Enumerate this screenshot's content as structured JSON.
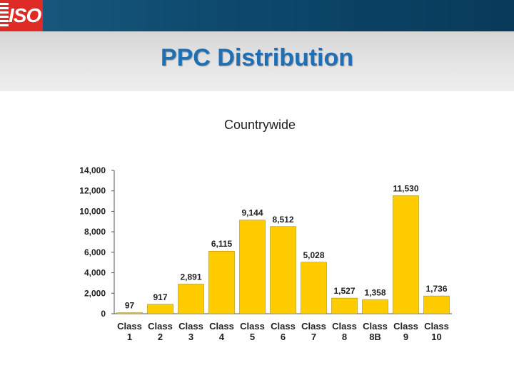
{
  "header": {
    "logo_text": "ISO",
    "brand_color": "#e02a26",
    "bar_color": "#0e4a6e"
  },
  "slide": {
    "title": "PPC Distribution",
    "title_color": "#1f6fb5"
  },
  "chart_data": {
    "type": "bar",
    "title": "Countrywide",
    "xlabel": "",
    "ylabel": "",
    "categories": [
      [
        "Class",
        "1"
      ],
      [
        "Class",
        "2"
      ],
      [
        "Class",
        "3"
      ],
      [
        "Class",
        "4"
      ],
      [
        "Class",
        "5"
      ],
      [
        "Class",
        "6"
      ],
      [
        "Class",
        "7"
      ],
      [
        "Class",
        "8"
      ],
      [
        "Class",
        "8B"
      ],
      [
        "Class",
        "9"
      ],
      [
        "Class",
        "10"
      ]
    ],
    "values": [
      97,
      917,
      2891,
      6115,
      9144,
      8512,
      5028,
      1527,
      1358,
      11530,
      1736
    ],
    "value_labels": [
      "97",
      "917",
      "2,891",
      "6,115",
      "9,144",
      "8,512",
      "5,028",
      "1,527",
      "1,358",
      "11,530",
      "1,736"
    ],
    "yticks": [
      0,
      2000,
      4000,
      6000,
      8000,
      10000,
      12000,
      14000
    ],
    "ytick_labels": [
      "0",
      "2,000",
      "4,000",
      "6,000",
      "8,000",
      "10,000",
      "12,000",
      "14,000"
    ],
    "ylim": [
      0,
      14000
    ],
    "bar_color": "#ffcc00",
    "grid": false,
    "legend": "none"
  }
}
